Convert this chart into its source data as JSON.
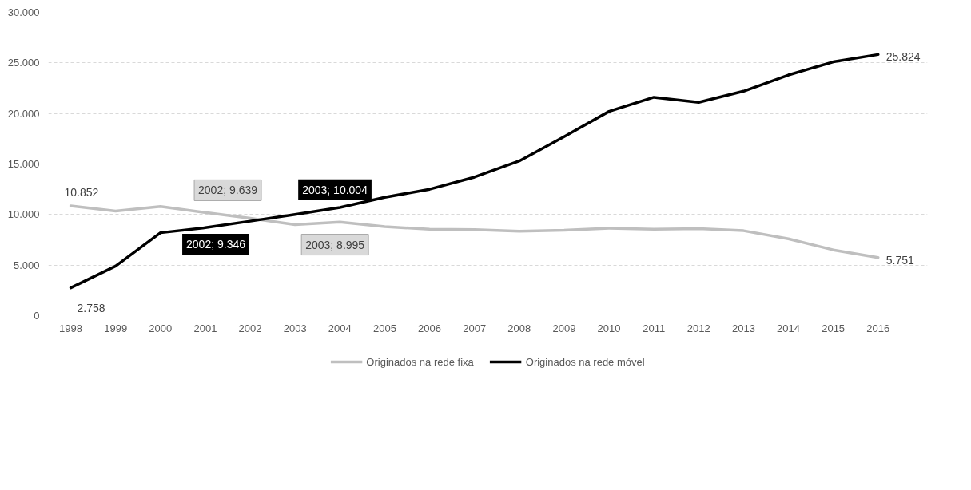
{
  "chart_data": {
    "type": "line",
    "categories": [
      "1998",
      "1999",
      "2000",
      "2001",
      "2002",
      "2003",
      "2004",
      "2005",
      "2006",
      "2007",
      "2008",
      "2009",
      "2010",
      "2011",
      "2012",
      "2013",
      "2014",
      "2015",
      "2016"
    ],
    "series": [
      {
        "name": "Originados na rede fixa",
        "color": "#bfbfbf",
        "values": [
          10852,
          10350,
          10800,
          10200,
          9639,
          8995,
          9250,
          8800,
          8550,
          8500,
          8350,
          8450,
          8650,
          8550,
          8600,
          8400,
          7600,
          6500,
          5751
        ],
        "value_labels": [
          "10.852",
          null,
          null,
          null,
          "2002; 9.639",
          "2003; 8.995",
          null,
          null,
          null,
          null,
          null,
          null,
          null,
          null,
          null,
          null,
          null,
          null,
          "5.751"
        ]
      },
      {
        "name": "Originados na rede móvel",
        "color": "#000000",
        "values": [
          2758,
          4900,
          8200,
          8700,
          9346,
          10004,
          10700,
          11700,
          12500,
          13700,
          15300,
          17700,
          20200,
          21600,
          21100,
          22200,
          23800,
          25100,
          25824
        ],
        "value_labels": [
          "2.758",
          null,
          null,
          null,
          "2002; 9.346",
          "2003; 10.004",
          null,
          null,
          null,
          null,
          null,
          null,
          null,
          null,
          null,
          null,
          null,
          null,
          "25.824"
        ]
      }
    ],
    "ylim": [
      0,
      30000
    ],
    "yticks": [
      0,
      {
        "value": 5000,
        "label": "5.000"
      },
      {
        "value": 10000,
        "label": "10.000"
      },
      {
        "value": 15000,
        "label": "15.000"
      },
      {
        "value": 20000,
        "label": "20.000"
      },
      {
        "value": 25000,
        "label": "25.000"
      },
      {
        "value": 30000,
        "label": "30.000"
      }
    ],
    "grid": "y",
    "legend": "bottom",
    "marker": "none",
    "line_style": "solid"
  }
}
